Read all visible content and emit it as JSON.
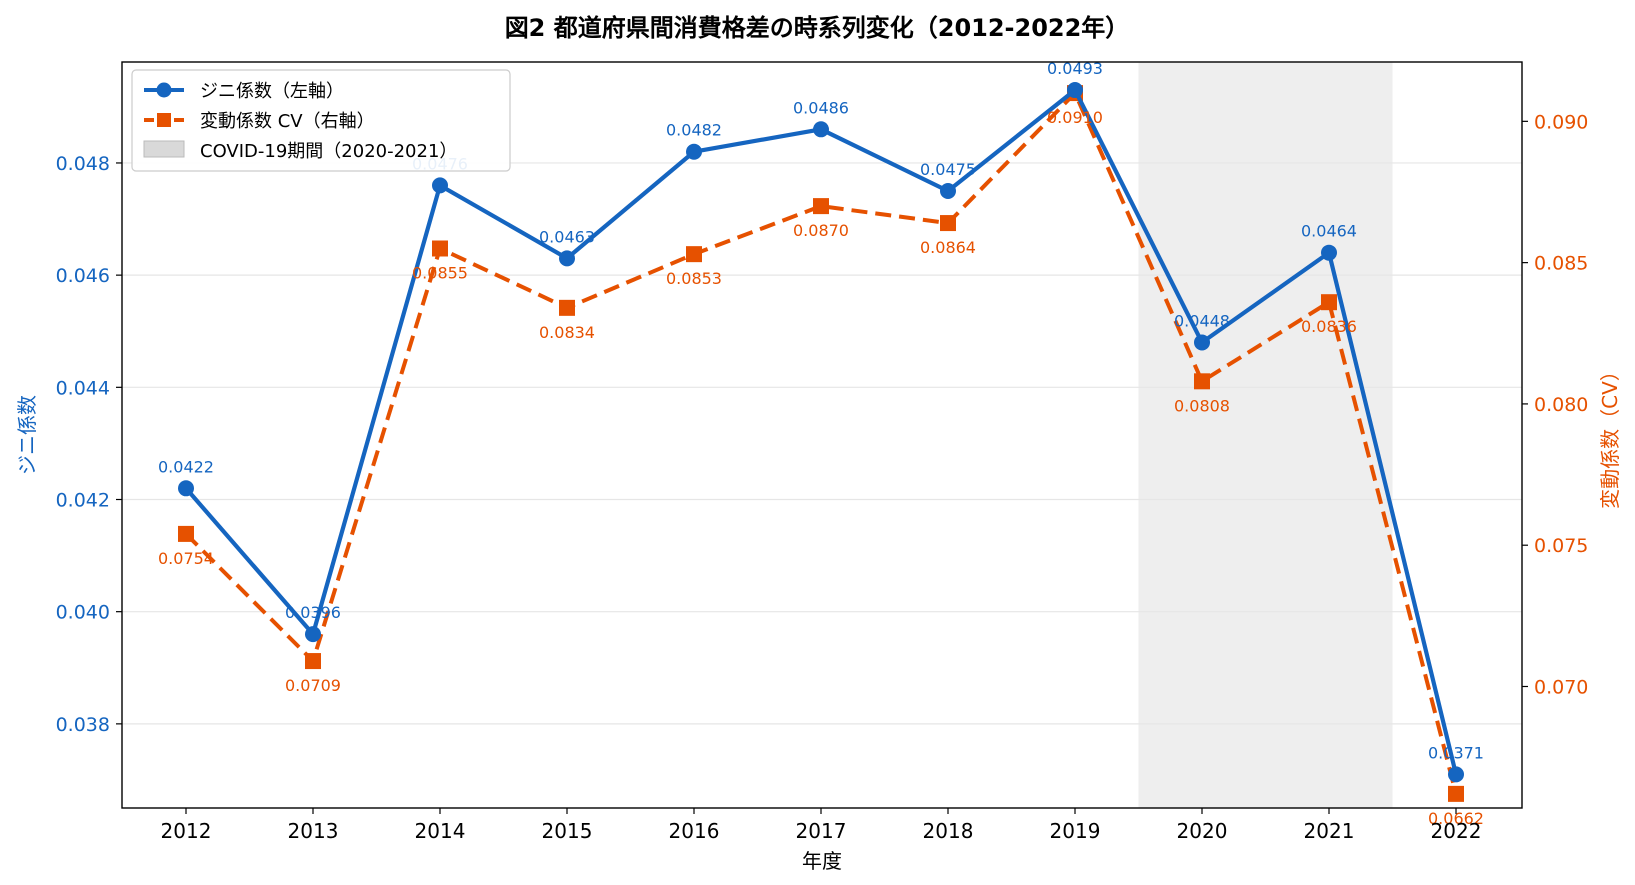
{
  "chart_data": {
    "type": "line",
    "title": "図2 都道府県間消費格差の時系列変化（2012-2022年）",
    "xlabel": "年度",
    "ylabel_left": "ジニ係数",
    "ylabel_right": "変動係数（CV）",
    "categories": [
      "2012",
      "2013",
      "2014",
      "2015",
      "2016",
      "2017",
      "2018",
      "2019",
      "2020",
      "2021",
      "2022"
    ],
    "ylim_left": [
      0.0365,
      0.0498
    ],
    "yticks_left": [
      "0.038",
      "0.040",
      "0.042",
      "0.044",
      "0.046",
      "0.048"
    ],
    "ylim_right": [
      0.0657,
      0.0921
    ],
    "yticks_right": [
      "0.070",
      "0.075",
      "0.080",
      "0.085",
      "0.090"
    ],
    "grid": true,
    "legend_position": "top-left",
    "shaded_region": {
      "label": "COVID-19期間（2020-2021）",
      "from": "2020",
      "to": "2021",
      "color": "#D9D9D9"
    },
    "series": [
      {
        "name": "ジニ係数（左軸）",
        "axis": "left",
        "color": "#1565C0",
        "values": [
          0.0422,
          0.0396,
          0.0476,
          0.0463,
          0.0482,
          0.0486,
          0.0475,
          0.0493,
          0.0448,
          0.0464,
          0.0371
        ],
        "labels": [
          "0.0422",
          "0.0396",
          "0.0476",
          "0.0463",
          "0.0482",
          "0.0486",
          "0.0475",
          "0.0493",
          "0.0448",
          "0.0464",
          "0.0371"
        ]
      },
      {
        "name": "変動係数 CV（右軸）",
        "axis": "right",
        "color": "#E65100",
        "values": [
          0.0754,
          0.0709,
          0.0855,
          0.0834,
          0.0853,
          0.087,
          0.0864,
          0.091,
          0.0808,
          0.0836,
          0.0662
        ],
        "labels": [
          "0.0754",
          "0.0709",
          "0.0855",
          "0.0834",
          "0.0853",
          "0.0870",
          "0.0864",
          "0.0910",
          "0.0808",
          "0.0836",
          "0.0662"
        ]
      }
    ]
  }
}
